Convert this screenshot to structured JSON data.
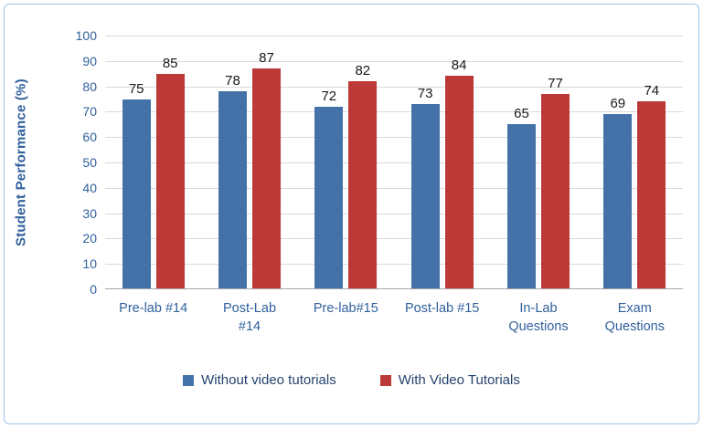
{
  "chart_data": {
    "type": "bar",
    "title": "",
    "categories": [
      "Pre-lab #14",
      "Post-Lab\n#14",
      "Pre-lab#15",
      "Post-lab #15",
      "In-Lab\nQuestions",
      "Exam\nQuestions"
    ],
    "series": [
      {
        "name": "Without video tutorials",
        "color": "#4472A8",
        "values": [
          75,
          78,
          72,
          73,
          65,
          69
        ]
      },
      {
        "name": "With Video Tutorials",
        "color": "#BB3A38",
        "values": [
          85,
          87,
          82,
          84,
          77,
          74
        ]
      }
    ],
    "xlabel": "",
    "ylabel": "Student Performance (%)",
    "ylim": [
      0,
      100
    ],
    "ytick_step": 10,
    "grid": "horizontal",
    "legend_position": "bottom",
    "show_value_labels": true
  },
  "style": {
    "text_color": "#31609C",
    "legend_text_color": "#24436E",
    "value_label_color": "#1a1a1a",
    "gridline_color": "#D9D9D9",
    "axis_line_color": "#A6A6A6",
    "frame_border_color": "#9DC3E6",
    "background": "#FFFFFF"
  }
}
